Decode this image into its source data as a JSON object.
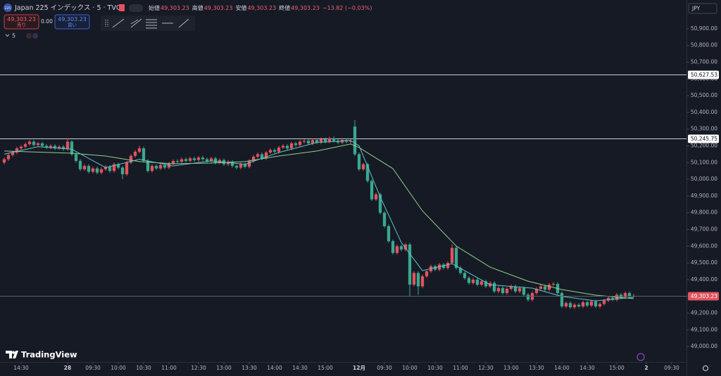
{
  "header": {
    "badge": "225",
    "symbol": "Japan 225 インデックス · 5 · TVC",
    "ohlc": [
      {
        "label": "始値",
        "value": "49,303.23"
      },
      {
        "label": "高値",
        "value": "49,303.23"
      },
      {
        "label": "安値",
        "value": "49,303.23"
      },
      {
        "label": "終値",
        "value": "49,303.23"
      }
    ],
    "change": "−13.82 (−0.03%)"
  },
  "trade": {
    "sell_price": "49,303.23",
    "sell_label": "売り",
    "spread": "0.00",
    "buy_price": "49,303.23",
    "buy_label": "買い"
  },
  "indicator": "5",
  "currency": "JPY",
  "logo": "TradingView",
  "chart_data": {
    "type": "candlestick",
    "up_color": "#e2535f",
    "down_color": "#3aa88e",
    "xlim": [
      -1,
      161.5
    ],
    "ylim": [
      48908,
      51072
    ],
    "xticks": [
      {
        "value": 4,
        "label": "14:30"
      },
      {
        "value": 15,
        "label": "28"
      },
      {
        "value": 21,
        "label": "09:30"
      },
      {
        "value": 27,
        "label": "10:00"
      },
      {
        "value": 33,
        "label": "10:30"
      },
      {
        "value": 39,
        "label": "11:00"
      },
      {
        "value": 46,
        "label": "12:30"
      },
      {
        "value": 52,
        "label": "13:00"
      },
      {
        "value": 58,
        "label": "13:30"
      },
      {
        "value": 64,
        "label": "14:00"
      },
      {
        "value": 70,
        "label": "14:30"
      },
      {
        "value": 76,
        "label": "15:00"
      },
      {
        "value": 84,
        "label": "12月"
      },
      {
        "value": 90,
        "label": "09:30"
      },
      {
        "value": 96,
        "label": "10:00"
      },
      {
        "value": 102,
        "label": "10:30"
      },
      {
        "value": 108,
        "label": "11:00"
      },
      {
        "value": 114,
        "label": "12:30"
      },
      {
        "value": 120,
        "label": "13:00"
      },
      {
        "value": 126,
        "label": "13:30"
      },
      {
        "value": 132,
        "label": "14:00"
      },
      {
        "value": 138,
        "label": "14:30"
      },
      {
        "value": 145,
        "label": "15:00"
      },
      {
        "value": 152,
        "label": "2"
      },
      {
        "value": 158,
        "label": "09:30"
      }
    ],
    "yticks": [
      {
        "value": 49000,
        "label": "49,000.00"
      },
      {
        "value": 49100,
        "label": "49,100.00"
      },
      {
        "value": 49200,
        "label": "49,200.00"
      },
      {
        "value": 49300,
        "label": "49,300.00"
      },
      {
        "value": 49400,
        "label": "49,400.00"
      },
      {
        "value": 49500,
        "label": "49,500.00"
      },
      {
        "value": 49600,
        "label": "49,600.00"
      },
      {
        "value": 49700,
        "label": "49,700.00"
      },
      {
        "value": 49800,
        "label": "49,800.00"
      },
      {
        "value": 49900,
        "label": "49,900.00"
      },
      {
        "value": 50000,
        "label": "50,000.00"
      },
      {
        "value": 50100,
        "label": "50,100.00"
      },
      {
        "value": 50200,
        "label": "50,200.00"
      },
      {
        "value": 50300,
        "label": "50,300.00"
      },
      {
        "value": 50400,
        "label": "50,400.00"
      },
      {
        "value": 50500,
        "label": "50,500.00"
      },
      {
        "value": 50600,
        "label": "50,600.00"
      },
      {
        "value": 50700,
        "label": "50,700.00"
      },
      {
        "value": 50800,
        "label": "50,800.00"
      },
      {
        "value": 50900,
        "label": "50,900.00"
      }
    ],
    "levels": [
      {
        "value": 50627.53,
        "label": "50,627.53"
      },
      {
        "value": 50245.75,
        "label": "50,245.75"
      }
    ],
    "level_color": "#c9ccd4",
    "last_price": {
      "value": 49303.23,
      "label": "49,303.23"
    },
    "last_color": "#e2535f",
    "candles": [
      [
        50100,
        50130,
        50090,
        50120
      ],
      [
        50120,
        50155,
        50110,
        50145
      ],
      [
        50145,
        50170,
        50135,
        50160
      ],
      [
        50160,
        50195,
        50150,
        50185
      ],
      [
        50185,
        50205,
        50175,
        50195
      ],
      [
        50195,
        50220,
        50185,
        50210
      ],
      [
        50210,
        50235,
        50200,
        50225
      ],
      [
        50225,
        50235,
        50195,
        50205
      ],
      [
        50205,
        50225,
        50195,
        50215
      ],
      [
        50215,
        50225,
        50190,
        50200
      ],
      [
        50200,
        50210,
        50180,
        50190
      ],
      [
        50190,
        50210,
        50180,
        50200
      ],
      [
        50200,
        50210,
        50175,
        50185
      ],
      [
        50185,
        50205,
        50175,
        50195
      ],
      [
        50195,
        50205,
        50170,
        50180
      ],
      [
        50180,
        50245,
        50170,
        50225
      ],
      [
        50225,
        50235,
        50140,
        50150
      ],
      [
        50150,
        50160,
        50100,
        50110
      ],
      [
        50110,
        50120,
        50050,
        50060
      ],
      [
        50060,
        50090,
        50050,
        50080
      ],
      [
        50080,
        50090,
        50035,
        50045
      ],
      [
        50045,
        50075,
        50035,
        50065
      ],
      [
        50065,
        50075,
        50030,
        50040
      ],
      [
        50040,
        50070,
        50030,
        50060
      ],
      [
        50060,
        50085,
        50050,
        50075
      ],
      [
        50075,
        50085,
        50040,
        50050
      ],
      [
        50050,
        50100,
        50040,
        50090
      ],
      [
        50090,
        50100,
        50060,
        50070
      ],
      [
        50070,
        50080,
        50000,
        50030
      ],
      [
        50030,
        50110,
        50020,
        50100
      ],
      [
        50100,
        50150,
        50090,
        50140
      ],
      [
        50140,
        50175,
        50130,
        50165
      ],
      [
        50165,
        50200,
        50155,
        50185
      ],
      [
        50185,
        50195,
        50100,
        50110
      ],
      [
        50110,
        50120,
        50040,
        50050
      ],
      [
        50050,
        50090,
        50040,
        50080
      ],
      [
        50080,
        50090,
        50055,
        50065
      ],
      [
        50065,
        50095,
        50055,
        50085
      ],
      [
        50085,
        50095,
        50060,
        50070
      ],
      [
        50070,
        50105,
        50060,
        50095
      ],
      [
        50095,
        50120,
        50085,
        50110
      ],
      [
        50110,
        50120,
        50095,
        50105
      ],
      [
        50105,
        50130,
        50095,
        50120
      ],
      [
        50120,
        50130,
        50100,
        50110
      ],
      [
        50110,
        50135,
        50100,
        50125
      ],
      [
        50125,
        50135,
        50105,
        50115
      ],
      [
        50115,
        50140,
        50105,
        50130
      ],
      [
        50130,
        50140,
        50110,
        50120
      ],
      [
        50120,
        50130,
        50100,
        50110
      ],
      [
        50110,
        50135,
        50100,
        50125
      ],
      [
        50125,
        50135,
        50090,
        50100
      ],
      [
        50100,
        50125,
        50090,
        50115
      ],
      [
        50115,
        50125,
        50080,
        50090
      ],
      [
        50090,
        50115,
        50080,
        50105
      ],
      [
        50105,
        50115,
        50070,
        50080
      ],
      [
        50080,
        50090,
        50060,
        50070
      ],
      [
        50070,
        50100,
        50060,
        50090
      ],
      [
        50090,
        50100,
        50065,
        50075
      ],
      [
        50075,
        50120,
        50065,
        50110
      ],
      [
        50110,
        50145,
        50100,
        50135
      ],
      [
        50135,
        50160,
        50125,
        50150
      ],
      [
        50150,
        50160,
        50115,
        50125
      ],
      [
        50125,
        50170,
        50115,
        50160
      ],
      [
        50160,
        50185,
        50150,
        50175
      ],
      [
        50175,
        50185,
        50155,
        50165
      ],
      [
        50165,
        50200,
        50155,
        50190
      ],
      [
        50190,
        50210,
        50180,
        50200
      ],
      [
        50200,
        50210,
        50175,
        50185
      ],
      [
        50185,
        50225,
        50175,
        50215
      ],
      [
        50215,
        50225,
        50195,
        50205
      ],
      [
        50205,
        50235,
        50195,
        50225
      ],
      [
        50225,
        50240,
        50215,
        50230
      ],
      [
        50230,
        50240,
        50205,
        50215
      ],
      [
        50215,
        50245,
        50205,
        50235
      ],
      [
        50235,
        50245,
        50210,
        50220
      ],
      [
        50220,
        50250,
        50210,
        50240
      ],
      [
        50240,
        50250,
        50215,
        50225
      ],
      [
        50225,
        50255,
        50215,
        50245
      ],
      [
        50245,
        50255,
        50220,
        50230
      ],
      [
        50230,
        50240,
        50210,
        50220
      ],
      [
        50220,
        50245,
        50210,
        50235
      ],
      [
        50235,
        50245,
        50215,
        50225
      ],
      [
        50225,
        50240,
        50215,
        50230
      ],
      [
        50315,
        50355,
        50140,
        50150
      ],
      [
        50150,
        50160,
        50050,
        50060
      ],
      [
        50060,
        50100,
        50050,
        50090
      ],
      [
        50090,
        50100,
        49980,
        49990
      ],
      [
        49990,
        50000,
        49870,
        49880
      ],
      [
        49880,
        49920,
        49870,
        49910
      ],
      [
        49910,
        49920,
        49790,
        49800
      ],
      [
        49800,
        49810,
        49710,
        49720
      ],
      [
        49720,
        49730,
        49620,
        49630
      ],
      [
        49630,
        49640,
        49550,
        49560
      ],
      [
        49560,
        49610,
        49550,
        49600
      ],
      [
        49600,
        49610,
        49570,
        49580
      ],
      [
        49580,
        49620,
        49570,
        49610
      ],
      [
        49610,
        49620,
        49300,
        49370
      ],
      [
        49370,
        49450,
        49360,
        49440
      ],
      [
        49440,
        49450,
        49310,
        49360
      ],
      [
        49360,
        49430,
        49350,
        49420
      ],
      [
        49420,
        49460,
        49410,
        49450
      ],
      [
        49450,
        49490,
        49440,
        49480
      ],
      [
        49480,
        49490,
        49450,
        49460
      ],
      [
        49460,
        49500,
        49450,
        49490
      ],
      [
        49490,
        49500,
        49460,
        49470
      ],
      [
        49470,
        49510,
        49460,
        49500
      ],
      [
        49500,
        49610,
        49490,
        49590
      ],
      [
        49590,
        49600,
        49460,
        49470
      ],
      [
        49470,
        49480,
        49430,
        49440
      ],
      [
        49440,
        49450,
        49400,
        49410
      ],
      [
        49410,
        49420,
        49370,
        49380
      ],
      [
        49380,
        49410,
        49370,
        49400
      ],
      [
        49400,
        49410,
        49360,
        49370
      ],
      [
        49370,
        49400,
        49360,
        49390
      ],
      [
        49390,
        49400,
        49350,
        49360
      ],
      [
        49360,
        49390,
        49350,
        49380
      ],
      [
        49380,
        49390,
        49320,
        49330
      ],
      [
        49330,
        49360,
        49320,
        49350
      ],
      [
        49350,
        49360,
        49310,
        49320
      ],
      [
        49320,
        49355,
        49310,
        49345
      ],
      [
        49345,
        49370,
        49335,
        49360
      ],
      [
        49360,
        49370,
        49320,
        49330
      ],
      [
        49330,
        49360,
        49320,
        49350
      ],
      [
        49350,
        49360,
        49300,
        49310
      ],
      [
        49310,
        49320,
        49270,
        49280
      ],
      [
        49280,
        49330,
        49270,
        49320
      ],
      [
        49320,
        49355,
        49310,
        49345
      ],
      [
        49345,
        49370,
        49335,
        49360
      ],
      [
        49360,
        49370,
        49330,
        49340
      ],
      [
        49340,
        49380,
        49330,
        49370
      ],
      [
        49370,
        49385,
        49360,
        49375
      ],
      [
        49375,
        49385,
        49310,
        49320
      ],
      [
        49320,
        49330,
        49230,
        49240
      ],
      [
        49240,
        49270,
        49230,
        49260
      ],
      [
        49260,
        49270,
        49225,
        49235
      ],
      [
        49235,
        49260,
        49225,
        49250
      ],
      [
        49250,
        49260,
        49230,
        49240
      ],
      [
        49240,
        49275,
        49230,
        49265
      ],
      [
        49265,
        49275,
        49235,
        49245
      ],
      [
        49245,
        49280,
        49235,
        49270
      ],
      [
        49270,
        49280,
        49230,
        49240
      ],
      [
        49240,
        49265,
        49230,
        49255
      ],
      [
        49255,
        49285,
        49245,
        49275
      ],
      [
        49275,
        49300,
        49265,
        49290
      ],
      [
        49290,
        49300,
        49270,
        49280
      ],
      [
        49280,
        49320,
        49270,
        49310
      ],
      [
        49310,
        49320,
        49285,
        49295
      ],
      [
        49295,
        49330,
        49285,
        49320
      ],
      [
        49320,
        49330,
        49290,
        49300
      ],
      [
        49300,
        49315,
        49295,
        49303.23
      ]
    ],
    "series": [
      {
        "color": "#8fd18a",
        "x": [
          0,
          16,
          24,
          32,
          40,
          49,
          57,
          65,
          74,
          82,
          84,
          92,
          99,
          107,
          115,
          124,
          132,
          140,
          149
        ],
        "values": [
          50169,
          50156,
          50139,
          50106,
          50093,
          50097,
          50106,
          50139,
          50169,
          50211,
          50190,
          50064,
          49811,
          49601,
          49475,
          49391,
          49341,
          49307,
          49286
        ]
      },
      {
        "color": "#5cc4c9",
        "x": [
          0,
          8,
          16,
          24,
          32,
          40,
          49,
          57,
          65,
          74,
          82,
          84,
          89,
          94,
          99,
          106,
          115,
          125,
          132,
          140,
          149
        ],
        "values": [
          50150,
          50195,
          50180,
          50070,
          50120,
          50080,
          50110,
          50090,
          50160,
          50220,
          50232,
          50200,
          49895,
          49622,
          49454,
          49496,
          49370,
          49349,
          49300,
          49273,
          49294
        ]
      }
    ]
  }
}
